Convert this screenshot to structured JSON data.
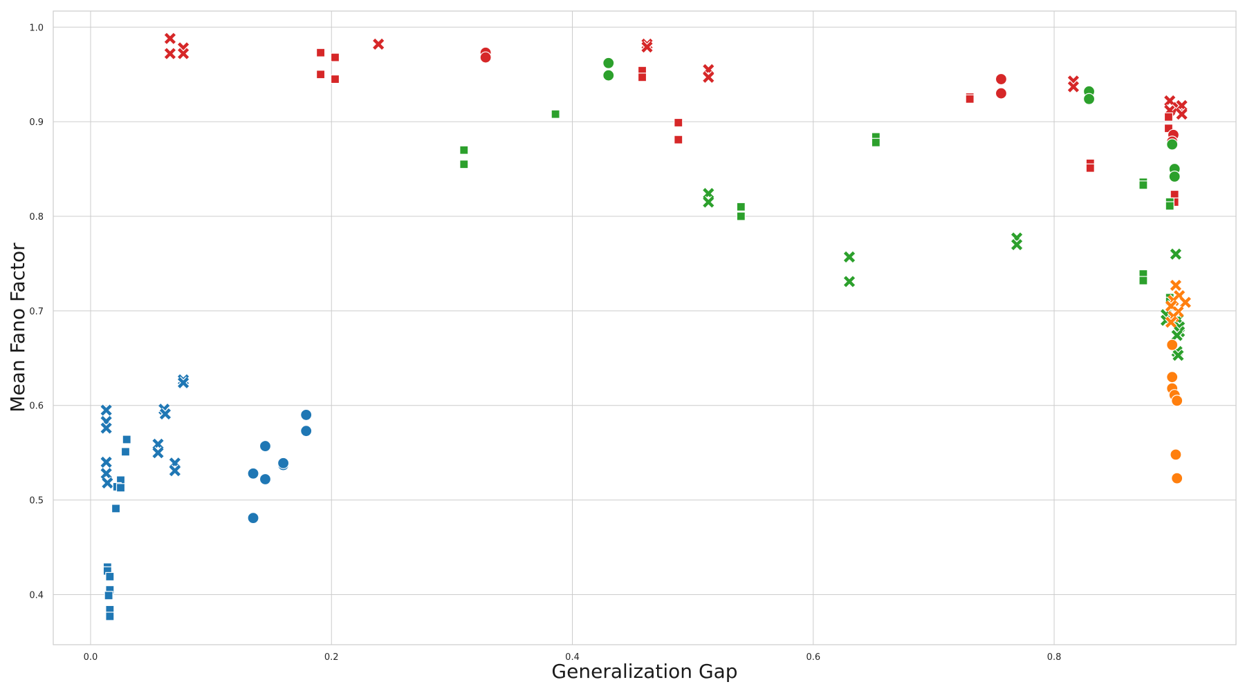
{
  "chart_data": {
    "type": "scatter",
    "xlabel": "Generalization Gap",
    "ylabel": "Mean Fano Factor",
    "xlim": [
      -0.031,
      0.951
    ],
    "ylim": [
      0.347,
      1.017
    ],
    "xticks": [
      "0.0",
      "0.2",
      "0.4",
      "0.6",
      "0.8"
    ],
    "xtick_values": [
      0.0,
      0.2,
      0.4,
      0.6,
      0.8
    ],
    "yticks": [
      "0.4",
      "0.5",
      "0.6",
      "0.7",
      "0.8",
      "0.9",
      "1.0"
    ],
    "ytick_values": [
      0.4,
      0.5,
      0.6,
      0.7,
      0.8,
      0.9,
      1.0
    ],
    "grid": true,
    "legend": "none",
    "series": [
      {
        "color": "#1f77b4",
        "marker": "x",
        "points": [
          [
            0.013,
            0.595
          ],
          [
            0.013,
            0.583
          ],
          [
            0.013,
            0.576
          ],
          [
            0.013,
            0.54
          ],
          [
            0.013,
            0.528
          ],
          [
            0.014,
            0.518
          ],
          [
            0.061,
            0.596
          ],
          [
            0.062,
            0.591
          ],
          [
            0.056,
            0.559
          ],
          [
            0.056,
            0.55
          ],
          [
            0.07,
            0.539
          ],
          [
            0.07,
            0.531
          ],
          [
            0.077,
            0.627
          ],
          [
            0.077,
            0.624
          ]
        ]
      },
      {
        "color": "#1f77b4",
        "marker": "square",
        "points": [
          [
            0.03,
            0.564
          ],
          [
            0.029,
            0.551
          ],
          [
            0.025,
            0.521
          ],
          [
            0.022,
            0.514
          ],
          [
            0.025,
            0.513
          ],
          [
            0.021,
            0.491
          ],
          [
            0.014,
            0.429
          ],
          [
            0.014,
            0.425
          ],
          [
            0.016,
            0.419
          ],
          [
            0.016,
            0.405
          ],
          [
            0.015,
            0.399
          ],
          [
            0.016,
            0.384
          ],
          [
            0.016,
            0.377
          ]
        ]
      },
      {
        "color": "#1f77b4",
        "marker": "circle",
        "points": [
          [
            0.135,
            0.528
          ],
          [
            0.145,
            0.522
          ],
          [
            0.145,
            0.557
          ],
          [
            0.135,
            0.481
          ],
          [
            0.16,
            0.537
          ],
          [
            0.16,
            0.539
          ],
          [
            0.179,
            0.59
          ],
          [
            0.179,
            0.573
          ]
        ]
      },
      {
        "color": "#d62728",
        "marker": "x",
        "points": [
          [
            0.066,
            0.988
          ],
          [
            0.066,
            0.972
          ],
          [
            0.077,
            0.978
          ],
          [
            0.077,
            0.972
          ],
          [
            0.239,
            0.982
          ],
          [
            0.462,
            0.982
          ],
          [
            0.462,
            0.979
          ],
          [
            0.513,
            0.955
          ],
          [
            0.513,
            0.947
          ],
          [
            0.816,
            0.943
          ],
          [
            0.816,
            0.937
          ],
          [
            0.896,
            0.922
          ],
          [
            0.896,
            0.912
          ],
          [
            0.903,
            0.915
          ],
          [
            0.906,
            0.917
          ],
          [
            0.906,
            0.908
          ]
        ]
      },
      {
        "color": "#d62728",
        "marker": "square",
        "points": [
          [
            0.191,
            0.973
          ],
          [
            0.191,
            0.95
          ],
          [
            0.203,
            0.968
          ],
          [
            0.203,
            0.945
          ],
          [
            0.458,
            0.954
          ],
          [
            0.458,
            0.947
          ],
          [
            0.488,
            0.899
          ],
          [
            0.488,
            0.881
          ],
          [
            0.73,
            0.926
          ],
          [
            0.73,
            0.924
          ],
          [
            0.83,
            0.856
          ],
          [
            0.83,
            0.851
          ],
          [
            0.895,
            0.905
          ],
          [
            0.895,
            0.893
          ],
          [
            0.9,
            0.823
          ],
          [
            0.9,
            0.815
          ]
        ]
      },
      {
        "color": "#d62728",
        "marker": "circle",
        "points": [
          [
            0.328,
            0.973
          ],
          [
            0.328,
            0.968
          ],
          [
            0.756,
            0.945
          ],
          [
            0.756,
            0.93
          ],
          [
            0.899,
            0.886
          ],
          [
            0.898,
            0.879
          ]
        ]
      },
      {
        "color": "#2ca02c",
        "marker": "square",
        "points": [
          [
            0.31,
            0.87
          ],
          [
            0.31,
            0.855
          ],
          [
            0.386,
            0.908
          ],
          [
            0.54,
            0.81
          ],
          [
            0.54,
            0.8
          ],
          [
            0.652,
            0.884
          ],
          [
            0.652,
            0.878
          ],
          [
            0.874,
            0.836
          ],
          [
            0.874,
            0.833
          ],
          [
            0.874,
            0.739
          ],
          [
            0.874,
            0.732
          ],
          [
            0.896,
            0.815
          ],
          [
            0.896,
            0.811
          ],
          [
            0.896,
            0.714
          ],
          [
            0.896,
            0.71
          ]
        ]
      },
      {
        "color": "#2ca02c",
        "marker": "circle",
        "points": [
          [
            0.43,
            0.962
          ],
          [
            0.43,
            0.949
          ],
          [
            0.829,
            0.932
          ],
          [
            0.829,
            0.924
          ],
          [
            0.898,
            0.876
          ],
          [
            0.9,
            0.85
          ],
          [
            0.9,
            0.842
          ]
        ]
      },
      {
        "color": "#2ca02c",
        "marker": "x",
        "points": [
          [
            0.513,
            0.824
          ],
          [
            0.513,
            0.815
          ],
          [
            0.63,
            0.757
          ],
          [
            0.63,
            0.731
          ],
          [
            0.769,
            0.777
          ],
          [
            0.769,
            0.77
          ],
          [
            0.901,
            0.76
          ],
          [
            0.893,
            0.696
          ],
          [
            0.893,
            0.69
          ],
          [
            0.903,
            0.691
          ],
          [
            0.904,
            0.683
          ],
          [
            0.904,
            0.678
          ],
          [
            0.902,
            0.674
          ],
          [
            0.902,
            0.657
          ],
          [
            0.903,
            0.653
          ]
        ]
      },
      {
        "color": "#ff7f0e",
        "marker": "x",
        "points": [
          [
            0.901,
            0.727
          ],
          [
            0.904,
            0.716
          ],
          [
            0.899,
            0.711
          ],
          [
            0.909,
            0.709
          ],
          [
            0.897,
            0.705
          ],
          [
            0.903,
            0.699
          ],
          [
            0.899,
            0.694
          ],
          [
            0.897,
            0.688
          ]
        ]
      },
      {
        "color": "#ff7f0e",
        "marker": "circle",
        "points": [
          [
            0.898,
            0.664
          ],
          [
            0.898,
            0.63
          ],
          [
            0.898,
            0.618
          ],
          [
            0.9,
            0.611
          ],
          [
            0.902,
            0.605
          ],
          [
            0.901,
            0.548
          ],
          [
            0.902,
            0.523
          ]
        ]
      }
    ]
  }
}
